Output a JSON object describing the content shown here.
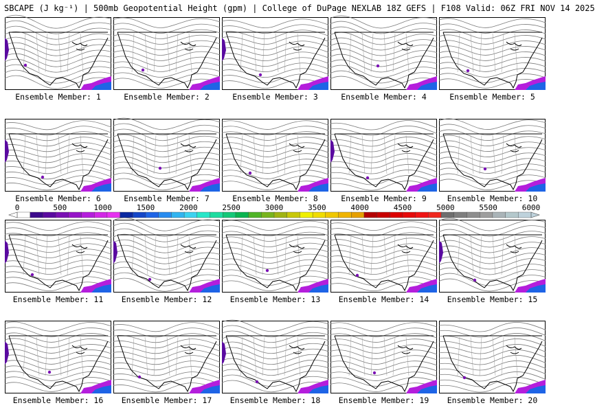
{
  "title": "SBCAPE (J kg⁻¹) | 500mb Geopotential Height (gpm) | College of DuPage NEXLAB 18Z GEFS | F108 Valid: 06Z FRI NOV 14 2025",
  "members": [
    {
      "label": "Ensemble Member: 1"
    },
    {
      "label": "Ensemble Member: 2"
    },
    {
      "label": "Ensemble Member: 3"
    },
    {
      "label": "Ensemble Member: 4"
    },
    {
      "label": "Ensemble Member: 5"
    },
    {
      "label": "Ensemble Member: 6"
    },
    {
      "label": "Ensemble Member: 7"
    },
    {
      "label": "Ensemble Member: 8"
    },
    {
      "label": "Ensemble Member: 9"
    },
    {
      "label": "Ensemble Member: 10"
    },
    {
      "label": "Ensemble Member: 11"
    },
    {
      "label": "Ensemble Member: 12"
    },
    {
      "label": "Ensemble Member: 13"
    },
    {
      "label": "Ensemble Member: 14"
    },
    {
      "label": "Ensemble Member: 15"
    },
    {
      "label": "Ensemble Member: 16"
    },
    {
      "label": "Ensemble Member: 17"
    },
    {
      "label": "Ensemble Member: 18"
    },
    {
      "label": "Ensemble Member: 19"
    },
    {
      "label": "Ensemble Member: 20"
    }
  ],
  "colorbar": {
    "ticks": [
      "0",
      "500",
      "1000",
      "1500",
      "2000",
      "2500",
      "3000",
      "3500",
      "4000",
      "4500",
      "5000",
      "5500",
      "6000"
    ],
    "colors": [
      "#ffffff",
      "#3c0a8c",
      "#5a0aa0",
      "#7a10b4",
      "#9614c8",
      "#b41edc",
      "#d228e6",
      "#e632f0",
      "#0a28a0",
      "#1446c8",
      "#1e64e6",
      "#288cf0",
      "#32b4f0",
      "#3cd2f0",
      "#28e6c8",
      "#1edca0",
      "#14c878",
      "#0ab450",
      "#50b428",
      "#78b41e",
      "#a0b414",
      "#c8c80a",
      "#f0f000",
      "#f0dc00",
      "#f0c800",
      "#f0b400",
      "#e6a000",
      "#b40000",
      "#c80000",
      "#dc0000",
      "#e60a0a",
      "#f01414",
      "#f0281e",
      "#6e6e6e",
      "#7e7e7e",
      "#8e8e8e",
      "#9e9e9e",
      "#aab4b8",
      "#b4c8cc",
      "#bed2dc"
    ]
  }
}
